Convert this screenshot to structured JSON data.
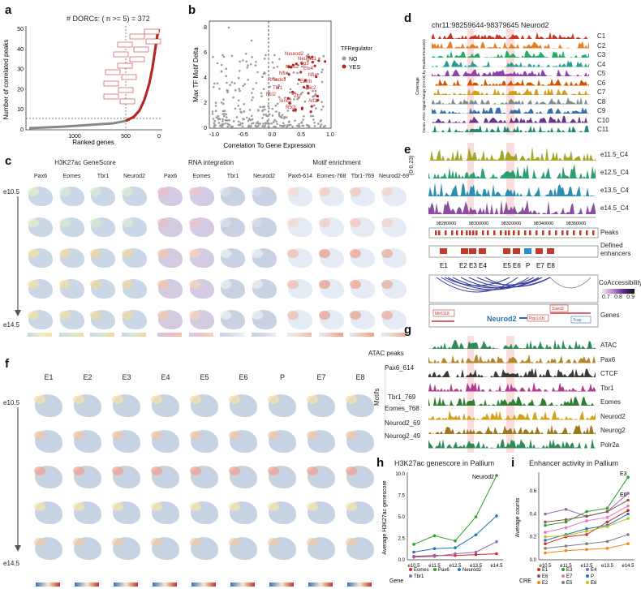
{
  "panel_letters": {
    "a": "a",
    "b": "b",
    "c": "c",
    "d": "d",
    "e": "e",
    "f": "f",
    "g": "g",
    "h": "h",
    "i": "i"
  },
  "panel_a": {
    "title": "# DORCs: ( n >= 5) = 372",
    "ylabel": "Number of correlated peaks",
    "xlabel": "Ranked genes",
    "yticks": [
      "0",
      "10",
      "20",
      "30",
      "40",
      "50"
    ],
    "xticks": [
      "1000",
      "500",
      "0"
    ]
  },
  "panel_b": {
    "ylabel": "Max TF Motif Delta",
    "xlabel": "Correlation To Gene Expression",
    "xticks": [
      "-1.0",
      "-0.5",
      "0.0",
      "0.5",
      "1.0"
    ],
    "yticks": [
      "0",
      "2",
      "4",
      "6",
      "8"
    ],
    "legend_title": "TFRegulator",
    "legend_no": "NO",
    "legend_yes": "YES",
    "label_neurod2": "Neurod2"
  },
  "panel_c": {
    "groups": [
      "H3K27ac GeneScore",
      "RNA integration",
      "Motif enrichment"
    ],
    "cols": [
      "Pax6",
      "Eomes",
      "Tbr1",
      "Neurod2",
      "Pax6",
      "Eomes",
      "Tbr1",
      "Neurod2",
      "Pax6-614",
      "Eomes-768",
      "Tbr1-769",
      "Neurod2-69"
    ],
    "stage_top": "e10.5",
    "stage_bottom": "e14.5"
  },
  "panel_d": {
    "locus": "chr11:98259644-98379645 Neurod2",
    "clusters": [
      "C1",
      "C2",
      "C3",
      "C4",
      "C5",
      "C6",
      "C7",
      "C8",
      "C9",
      "C10",
      "C11"
    ],
    "ylabel1": "Coverage",
    "ylabel2": "(Norm. ATAC Signal Range (0-0.18) by ReadsInPromoter)",
    "cluster_colors": [
      "#c0392b",
      "#e67e22",
      "#27ae60",
      "#2a9d8f",
      "#8e44ad",
      "#d35400",
      "#d4a017",
      "#7f8c8d",
      "#3b6ea5",
      "#6c3483",
      "#1f8a70"
    ]
  },
  "panel_e": {
    "tracks": [
      "e11.5_C4",
      "e12.5_C4",
      "e13.5_C4",
      "e14.5_C4"
    ],
    "track_colors": [
      "#a5a52a",
      "#2e9e6e",
      "#2a8fb0",
      "#8a4f9e"
    ],
    "yrange": "(0-0.23)",
    "xticks": [
      "98280000",
      "98300000",
      "98320000",
      "98340000",
      "98360000"
    ],
    "peaks_label": "Peaks",
    "enh_label": "Defined enhancers",
    "enhancers": [
      "E1",
      "E2",
      "E3",
      "E4",
      "E5",
      "E6",
      "P",
      "E7",
      "E8"
    ],
    "coacc_label": "CoAccessibility",
    "coacc_ticks": [
      "0.7",
      "0.8",
      "0.9"
    ],
    "genes_label": "Genes",
    "genes": [
      "Mir6118",
      "Neurod2",
      "Ppp1r1b",
      "Stard3",
      "Tcap"
    ]
  },
  "panel_g": {
    "tracks": [
      "ATAC",
      "Pax6",
      "CTCF",
      "Tbr1",
      "Eomes",
      "Neurod2",
      "Neurog2",
      "Polr2a"
    ],
    "left_labels": [
      "ATAC peaks",
      "Pax6_614",
      "Tbr1_769",
      "Eomes_768",
      "Neurod2_69",
      "Neurog2_49"
    ],
    "motifs_label": "Motifs",
    "track_colors": [
      "#2e8b57",
      "#b0892c",
      "#3a3a3a",
      "#b03a8c",
      "#2e7d32",
      "#d4a017",
      "#9c7a1c",
      "#2e8b57"
    ]
  },
  "panel_f": {
    "cols": [
      "E1",
      "E2",
      "E3",
      "E4",
      "E5",
      "E6",
      "P",
      "E7",
      "E8"
    ],
    "stage_top": "e10.5",
    "stage_bottom": "e14.5"
  },
  "chart_data": [
    {
      "type": "line",
      "title": "H3K27ac genescore in Pallium",
      "xlabel": "",
      "ylabel": "Average H3K27ac genescore",
      "categories": [
        "e10.5",
        "e11.5",
        "e12.5",
        "e13.5",
        "e14.5"
      ],
      "yticks": [
        "0.0",
        "2.5",
        "5.0",
        "7.5",
        "10.0"
      ],
      "ylim": [
        0,
        10
      ],
      "legend_title": "Gene",
      "series": [
        {
          "name": "Eomes",
          "color": "#d62728",
          "values": [
            0.4,
            0.5,
            0.5,
            0.6,
            0.7
          ]
        },
        {
          "name": "Pax6",
          "color": "#2ca02c",
          "values": [
            1.8,
            2.8,
            2.2,
            5.0,
            9.8
          ]
        },
        {
          "name": "Neurod2",
          "color": "#1f77b4",
          "values": [
            0.9,
            1.3,
            1.4,
            2.9,
            5.1
          ]
        },
        {
          "name": "Tbr1",
          "color": "#9467bd",
          "values": [
            0.3,
            0.4,
            0.7,
            0.9,
            2.1
          ]
        }
      ],
      "annotation": "Neurod2"
    },
    {
      "type": "line",
      "title": "Enhancer activity in Pallium",
      "xlabel": "",
      "ylabel": "Average counts",
      "categories": [
        "e10.5",
        "e11.5",
        "e12.5",
        "e13.5",
        "e14.5"
      ],
      "yticks": [
        "0.0",
        "0.2",
        "0.4",
        "0.6"
      ],
      "ylim": [
        0,
        0.75
      ],
      "legend_title": "CRE",
      "series": [
        {
          "name": "E1",
          "color": "#d62728",
          "values": [
            0.14,
            0.2,
            0.22,
            0.33,
            0.43
          ]
        },
        {
          "name": "E3",
          "color": "#2ca02c",
          "values": [
            0.3,
            0.33,
            0.42,
            0.45,
            0.72
          ]
        },
        {
          "name": "E4",
          "color": "#9467bd",
          "values": [
            0.4,
            0.44,
            0.38,
            0.42,
            0.58
          ]
        },
        {
          "name": "E6",
          "color": "#8c564b",
          "values": [
            0.33,
            0.35,
            0.38,
            0.42,
            0.52
          ]
        },
        {
          "name": "E7",
          "color": "#e377c2",
          "values": [
            0.24,
            0.28,
            0.34,
            0.37,
            0.47
          ]
        },
        {
          "name": "P",
          "color": "#1f77b4",
          "values": [
            0.17,
            0.22,
            0.27,
            0.3,
            0.4
          ]
        },
        {
          "name": "E2",
          "color": "#ff7f0e",
          "values": [
            0.06,
            0.08,
            0.09,
            0.1,
            0.14
          ]
        },
        {
          "name": "E5",
          "color": "#7f7f7f",
          "values": [
            0.1,
            0.12,
            0.14,
            0.16,
            0.22
          ]
        },
        {
          "name": "E8",
          "color": "#bcbd22",
          "values": [
            0.2,
            0.21,
            0.25,
            0.29,
            0.36
          ]
        }
      ],
      "annotations": [
        "E3",
        "E6"
      ]
    }
  ]
}
